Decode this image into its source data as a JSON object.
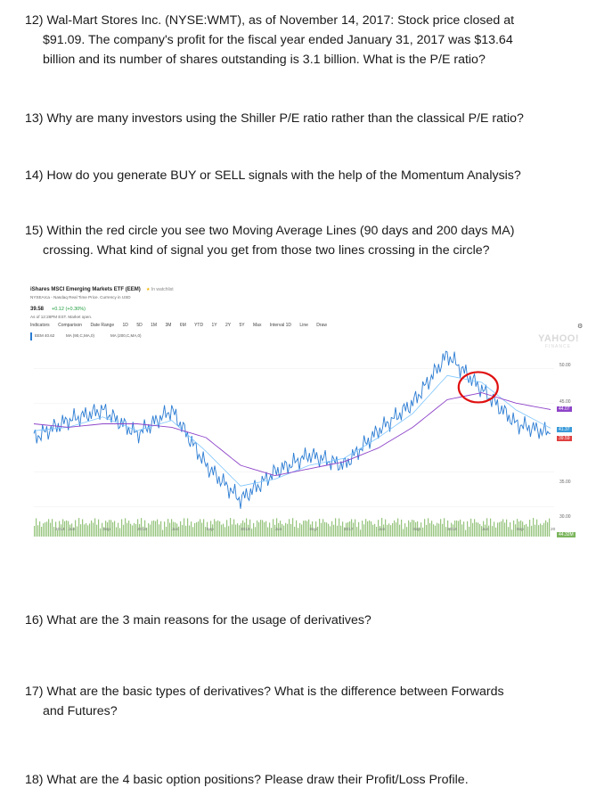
{
  "questions": [
    {
      "id": "q12",
      "number": "12)",
      "line1": "Wal-Mart Stores Inc. (NYSE:WMT), as of November 14, 2017: Stock price closed at",
      "line2": "$91.09. The company's profit for the fiscal year ended January 31, 2017 was $13.64",
      "line3": "billion and its number of shares outstanding is 3.1 billion. What is the P/E ratio?"
    },
    {
      "id": "q13",
      "number": "13)",
      "line1": "Why are many investors using the Shiller P/E ratio rather than the classical P/E ratio?"
    },
    {
      "id": "q14",
      "number": "14)",
      "line1": "How do you generate BUY or SELL signals with the help of the Momentum Analysis?"
    },
    {
      "id": "q15",
      "number": "15)",
      "line1": "Within the red circle you see two Moving Average Lines (90 days and 200 days MA)",
      "line2": "crossing. What kind of signal you get from those two lines crossing in the circle?"
    },
    {
      "id": "q16",
      "number": "16)",
      "line1": "What are the 3 main reasons for the usage of derivatives?"
    },
    {
      "id": "q17",
      "number": "17)",
      "line1": "What are the basic types of derivatives? What is the difference between Forwards",
      "line2": "and Futures?"
    },
    {
      "id": "q18",
      "number": "18)",
      "line1": "What are the 4 basic option positions? Please draw their Profit/Loss Profile."
    }
  ],
  "chart": {
    "etf_title": "iShares MSCI Emerging Markets ETF (EEM)",
    "watchlist": "In watchlist",
    "exchange": "NYSEArca - Nasdaq Real Time Price. Currency in USD",
    "price": "39.58",
    "change": "+0.12 (+0.30%)",
    "timestamp": "As of 12:28PM EST. Market open.",
    "toolbar": [
      "Indicators",
      "Comparison",
      "Date Range",
      "1D",
      "5D",
      "1M",
      "3M",
      "6M",
      "YTD",
      "1Y",
      "2Y",
      "5Y",
      "Max",
      "Interval 1D",
      "Line",
      "Draw"
    ],
    "chips": [
      "EEM 40.62",
      "MA (90,C,MA,0)",
      "MA (200,C,MA,0)"
    ],
    "logo": "YAHOO!",
    "logo_sub": "FINANCE",
    "y_labels": [
      "50.00",
      "45.00",
      "35.00",
      "30.00"
    ],
    "y_tags": [
      "44.07",
      "41.37",
      "39.59",
      "44.32M"
    ],
    "x_labels": [
      "2014",
      "Jun",
      "Sep",
      "2015",
      "Jun",
      "Sep",
      "2016",
      "Jun",
      "Sep",
      "2017",
      "Jun",
      "Sep",
      "2018",
      "Jun",
      "Sep",
      "20"
    ],
    "colors": {
      "price": "#2b7cd3",
      "ma90": "#7fc6ff",
      "ma200": "#8e44c9",
      "volume": "#7bb55c",
      "circle": "#e01010"
    }
  },
  "chart_data": {
    "type": "line",
    "x": [
      "2014",
      "2014-06",
      "2014-09",
      "2015",
      "2015-06",
      "2015-09",
      "2016",
      "2016-06",
      "2016-09",
      "2017",
      "2017-06",
      "2017-09",
      "2018",
      "2018-06",
      "2018-09",
      "2018-11"
    ],
    "series": [
      {
        "name": "EEM",
        "values": [
          40,
          42.5,
          44,
          40.5,
          44,
          36,
          31,
          35,
          37.5,
          36,
          41,
          45,
          52,
          47,
          42,
          40.62
        ]
      },
      {
        "name": "MA (90,C,MA,0)",
        "values": [
          41,
          41.5,
          43,
          41,
          42.5,
          38,
          33,
          34,
          36,
          37,
          40,
          43.5,
          49,
          48,
          44,
          41.37
        ]
      },
      {
        "name": "MA (200,C,MA,0)",
        "values": [
          42,
          41.5,
          42,
          42,
          41.5,
          40,
          36,
          34.5,
          35.5,
          36.5,
          38.5,
          41.5,
          45.5,
          46.5,
          45,
          44.07
        ]
      }
    ],
    "ylim": [
      28,
      52
    ]
  }
}
